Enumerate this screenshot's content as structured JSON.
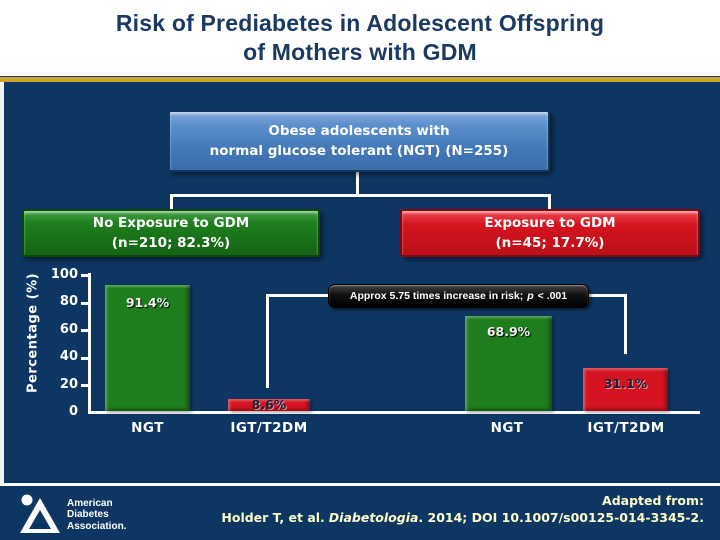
{
  "title": {
    "line1": "Risk of Prediabetes in Adolescent Offspring",
    "line2": "of Mothers with GDM"
  },
  "flowchart": {
    "root": {
      "line1": "Obese adolescents with",
      "line2": "normal glucose tolerant (NGT) (N=255)"
    },
    "no_exposure": {
      "line1": "No Exposure to GDM",
      "line2": "(n=210; 82.3%)"
    },
    "exposure": {
      "line1": "Exposure to GDM",
      "line2": "(n=45; 17.7%)"
    }
  },
  "callout": {
    "lead": "Approx 5.75 times increase in risk;",
    "p": "p",
    "tail": "< .001"
  },
  "chart_data": {
    "type": "bar",
    "ylabel": "Percentage (%)",
    "ylim": [
      0,
      100
    ],
    "yticks": [
      "100",
      "80",
      "60",
      "40",
      "20",
      "0"
    ],
    "grid": false,
    "legend_position": "none",
    "categories": [
      "NGT",
      "IGT/T2DM",
      "NGT",
      "IGT/T2DM"
    ],
    "series": [
      {
        "name": "No Exposure to GDM (n=210; 82.3%)",
        "categories": [
          "NGT",
          "IGT/T2DM"
        ],
        "values": [
          91.4,
          8.6
        ]
      },
      {
        "name": "Exposure to GDM (n=45; 17.7%)",
        "categories": [
          "NGT",
          "IGT/T2DM"
        ],
        "values": [
          68.9,
          31.1
        ]
      }
    ],
    "values": [
      91.4,
      8.6,
      68.9,
      31.1
    ],
    "labels": [
      "91.4%",
      "8.6%",
      "68.9%",
      "31.1%"
    ],
    "bar_colors": [
      "#1e7e1e",
      "#d51422",
      "#1e7e1e",
      "#d51422"
    ],
    "annotation": "Approx 5.75 times increase in risk; p < .001"
  },
  "footer": {
    "logo_line1": "American",
    "logo_line2": "Diabetes",
    "logo_line3": "Association.",
    "adapted_from": "Adapted from:",
    "citation_pre": "Holder T, et al.",
    "citation_journal": "Diabetologia",
    "citation_post": ". 2014; DOI 10.1007/s00125-014-3345-2."
  },
  "colors": {
    "background": "#0e3663",
    "title_text": "#1b3a63",
    "accent_gold": "#cfa42b",
    "green": "#1e7e1e",
    "red": "#d51422",
    "flow_blue": "#4277b7",
    "footer_text": "#ffffcc"
  }
}
